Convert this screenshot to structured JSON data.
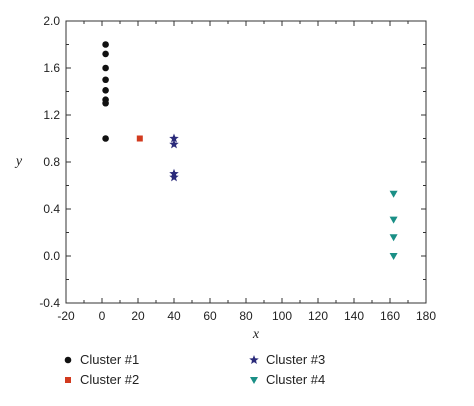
{
  "chart_data": {
    "type": "scatter",
    "xlabel": "x",
    "ylabel": "y",
    "xlim": [
      -20,
      180
    ],
    "ylim": [
      -0.4,
      2.0
    ],
    "xticks": [
      "-20",
      "0",
      "20",
      "40",
      "60",
      "80",
      "100",
      "120",
      "140",
      "160",
      "180"
    ],
    "yticks": [
      "-0.4",
      "0.0",
      "0.4",
      "0.8",
      "1.2",
      "1.6",
      "2.0"
    ],
    "xtick_values": [
      -20,
      0,
      20,
      40,
      60,
      80,
      100,
      120,
      140,
      160,
      180
    ],
    "ytick_values": [
      -0.4,
      0.0,
      0.4,
      0.8,
      1.2,
      1.6,
      2.0
    ],
    "grid": false,
    "legend_position": "bottom",
    "series": [
      {
        "name": "Cluster #1",
        "marker": "circle",
        "color": "#111111",
        "x": [
          2,
          2,
          2,
          2,
          2,
          2,
          2,
          2
        ],
        "y": [
          1.8,
          1.72,
          1.6,
          1.5,
          1.41,
          1.33,
          1.3,
          1.0
        ]
      },
      {
        "name": "Cluster #2",
        "marker": "square",
        "color": "#d23a1e",
        "x": [
          21
        ],
        "y": [
          1.0
        ]
      },
      {
        "name": "Cluster #3",
        "marker": "star",
        "color": "#2a2a7a",
        "x": [
          40,
          40,
          40,
          40
        ],
        "y": [
          1.0,
          0.95,
          0.7,
          0.67
        ]
      },
      {
        "name": "Cluster #4",
        "marker": "triangle-down",
        "color": "#1a8f86",
        "x": [
          162,
          162,
          162,
          162
        ],
        "y": [
          0.53,
          0.31,
          0.16,
          0.0
        ]
      }
    ]
  }
}
